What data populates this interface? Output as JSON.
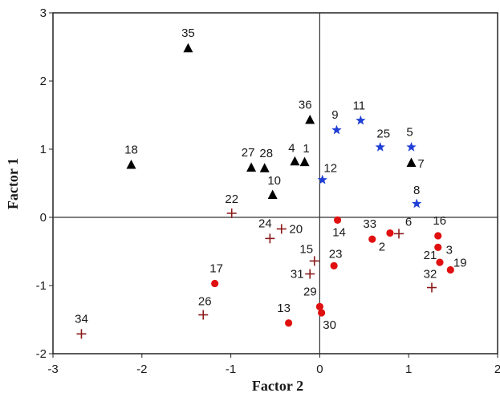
{
  "chart_data": {
    "type": "scatter",
    "xlabel": "Factor 2",
    "ylabel": "Factor 1",
    "xlim": [
      -3,
      2
    ],
    "ylim": [
      -2,
      3
    ],
    "x_ticks": [
      "-3",
      "-2",
      "-1",
      "0",
      "1",
      "2"
    ],
    "y_ticks": [
      "-2",
      "-1",
      "0",
      "1",
      "2",
      "3"
    ],
    "grid": false,
    "reference_lines": {
      "x": 0,
      "y": 0
    },
    "series": [
      {
        "marker": "triangle",
        "color": "#000000",
        "points": [
          {
            "label": "35",
            "x": -1.48,
            "y": 2.48
          },
          {
            "label": "18",
            "x": -2.12,
            "y": 0.77
          },
          {
            "label": "27",
            "x": -0.77,
            "y": 0.73
          },
          {
            "label": "28",
            "x": -0.62,
            "y": 0.72
          },
          {
            "label": "4",
            "x": -0.28,
            "y": 0.82
          },
          {
            "label": "1",
            "x": -0.17,
            "y": 0.81
          },
          {
            "label": "36",
            "x": -0.11,
            "y": 1.43
          },
          {
            "label": "10",
            "x": -0.53,
            "y": 0.33
          },
          {
            "label": "7",
            "x": 1.03,
            "y": 0.8
          }
        ]
      },
      {
        "marker": "star",
        "color": "#1f3fd6",
        "points": [
          {
            "label": "9",
            "x": 0.19,
            "y": 1.28
          },
          {
            "label": "11",
            "x": 0.46,
            "y": 1.42
          },
          {
            "label": "25",
            "x": 0.68,
            "y": 1.03
          },
          {
            "label": "5",
            "x": 1.03,
            "y": 1.03
          },
          {
            "label": "12",
            "x": 0.03,
            "y": 0.55
          },
          {
            "label": "8",
            "x": 1.09,
            "y": 0.2
          }
        ]
      },
      {
        "marker": "circle",
        "color": "#e01010",
        "points": [
          {
            "label": "14",
            "x": 0.2,
            "y": -0.04
          },
          {
            "label": "33",
            "x": 0.59,
            "y": -0.32
          },
          {
            "label": "2",
            "x": 0.79,
            "y": -0.23
          },
          {
            "label": "16",
            "x": 1.33,
            "y": -0.27
          },
          {
            "label": "3",
            "x": 1.33,
            "y": -0.44
          },
          {
            "label": "21",
            "x": 1.35,
            "y": -0.66
          },
          {
            "label": "19",
            "x": 1.47,
            "y": -0.77
          },
          {
            "label": "23",
            "x": 0.16,
            "y": -0.71
          },
          {
            "label": "17",
            "x": -1.18,
            "y": -0.97
          },
          {
            "label": "13",
            "x": -0.35,
            "y": -1.55
          },
          {
            "label": "29",
            "x": 0.0,
            "y": -1.31
          },
          {
            "label": "30",
            "x": 0.02,
            "y": -1.4
          }
        ]
      },
      {
        "marker": "plus",
        "color": "#8b1a1a",
        "points": [
          {
            "label": "22",
            "x": -0.99,
            "y": 0.06
          },
          {
            "label": "24",
            "x": -0.56,
            "y": -0.31
          },
          {
            "label": "20",
            "x": -0.43,
            "y": -0.17
          },
          {
            "label": "15",
            "x": -0.06,
            "y": -0.64
          },
          {
            "label": "31",
            "x": -0.11,
            "y": -0.83
          },
          {
            "label": "6",
            "x": 0.89,
            "y": -0.24
          },
          {
            "label": "32",
            "x": 1.26,
            "y": -1.03
          },
          {
            "label": "26",
            "x": -1.31,
            "y": -1.43
          },
          {
            "label": "34",
            "x": -2.68,
            "y": -1.71
          }
        ]
      }
    ]
  }
}
